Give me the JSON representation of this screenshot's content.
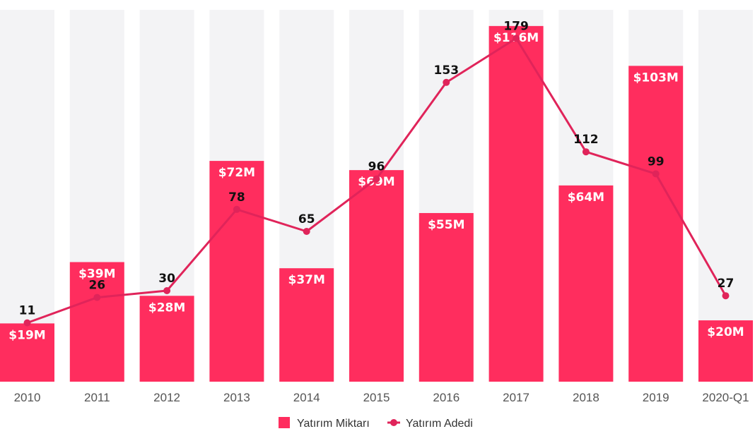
{
  "chart_data": {
    "type": "bar",
    "categories": [
      "2010",
      "2011",
      "2012",
      "2013",
      "2014",
      "2015",
      "2016",
      "2017",
      "2018",
      "2019",
      "2020-Q1"
    ],
    "series": [
      {
        "name": "Yatırım Miktarı",
        "kind": "bar",
        "unit": "$M",
        "values": [
          19,
          39,
          28,
          72,
          37,
          69,
          55,
          116,
          64,
          103,
          20
        ],
        "labels": [
          "$19M",
          "$39M",
          "$28M",
          "$72M",
          "$37M",
          "$69M",
          "$55M",
          "$116M",
          "$64M",
          "$103M",
          "$20M"
        ]
      },
      {
        "name": "Yatırım Adedi",
        "kind": "line",
        "values": [
          11,
          26,
          30,
          78,
          65,
          96,
          153,
          179,
          112,
          99,
          27
        ]
      }
    ],
    "legend": {
      "position": "bottom"
    },
    "grid": false
  },
  "colors": {
    "bar": "#ff2d5e",
    "line": "#e0245a",
    "background_bar": "#f3f3f5",
    "label_dark": "#111111",
    "tick": "#555555"
  }
}
